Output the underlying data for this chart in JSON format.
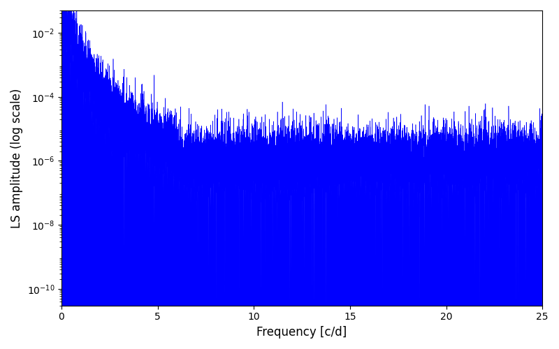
{
  "title": "",
  "xlabel": "Frequency [c/d]",
  "ylabel": "LS amplitude (log scale)",
  "xlim": [
    0,
    25
  ],
  "ylim": [
    3e-11,
    0.05
  ],
  "yscale": "log",
  "line_color": "#0000ff",
  "line_width": 0.4,
  "figsize": [
    8.0,
    5.0
  ],
  "dpi": 100,
  "freq_max": 25.0,
  "n_points": 15000,
  "seed": 42,
  "background_color": "#ffffff",
  "yticks": [
    1e-10,
    1e-08,
    1e-06,
    0.0001,
    0.01
  ]
}
